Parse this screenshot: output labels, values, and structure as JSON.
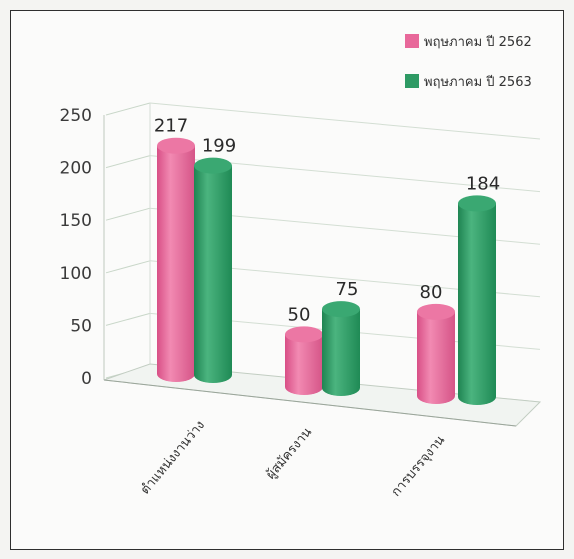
{
  "chart_data": {
    "type": "bar",
    "title": "",
    "xlabel": "",
    "ylabel": "",
    "categories": [
      "ตำแหน่งงานว่าง",
      "ผู้สมัครงาน",
      "การบรรจุงาน"
    ],
    "series": [
      {
        "name": "พฤษภาคม ปี 2562",
        "values": [
          217,
          50,
          80
        ],
        "color": "#e8689a"
      },
      {
        "name": "พฤษภาคม ปี 2563",
        "values": [
          199,
          75,
          184
        ],
        "color": "#2e9a64"
      }
    ],
    "ylim": [
      0,
      250
    ],
    "yticks": [
      "0",
      "50",
      "100",
      "150",
      "200",
      "250"
    ],
    "grid": true,
    "legend_position": "top-right",
    "style": "3d-cylinder"
  }
}
